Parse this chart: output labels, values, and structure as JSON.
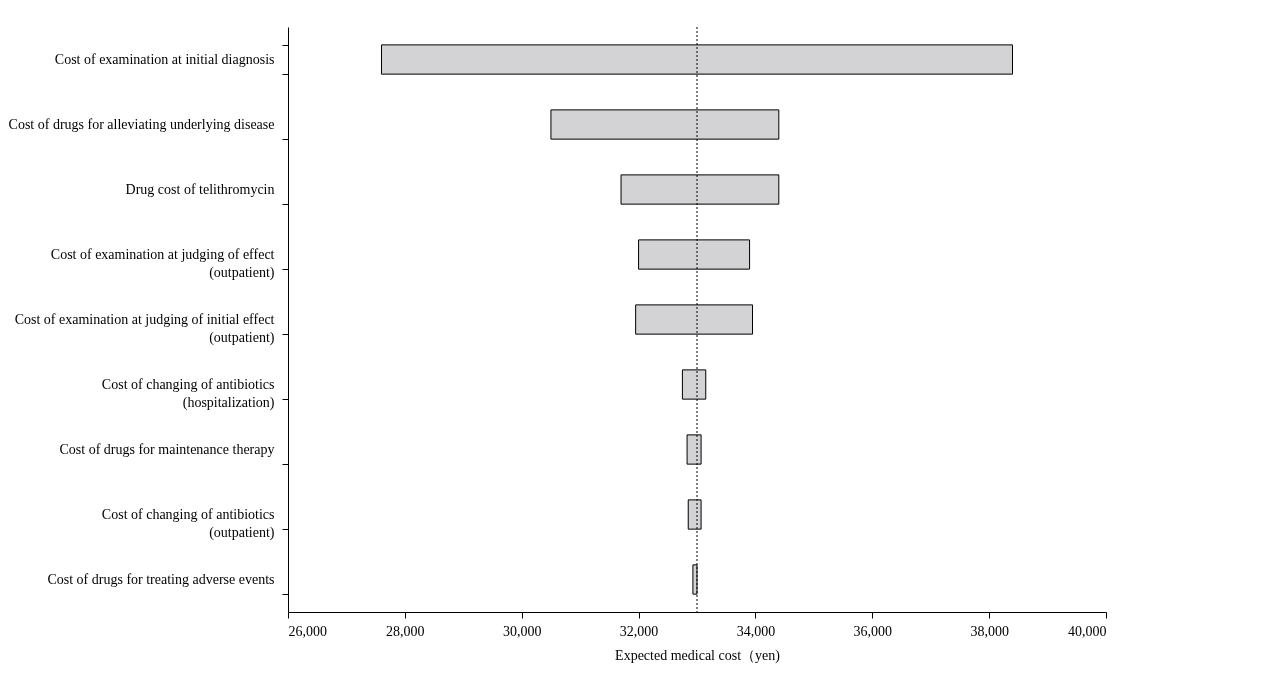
{
  "chart_data": {
    "type": "bar",
    "orientation": "horizontal",
    "xlabel": "Expected medical cost（yen)",
    "categories": [
      "Cost of examination at initial diagnosis",
      "Cost of drugs for alleviating underlying disease",
      "Drug cost of telithromycin",
      "Cost of examination at judging of effect\n(outpatient)",
      "Cost of examination at judging of initial effect\n(outpatient)",
      "Cost of changing of antibiotics\n(hospitalization)",
      "Cost of drugs for maintenance therapy",
      "Cost of changing of antibiotics\n(outpatient)",
      "Cost of drugs for treating adverse events"
    ],
    "base": [
      27600,
      30500,
      31700,
      32000,
      31950,
      32750,
      32830,
      32850,
      32930
    ],
    "values": [
      10800,
      3900,
      2700,
      1900,
      2000,
      400,
      240,
      220,
      70
    ],
    "color": "#d3d3d6",
    "xlim": [
      26000,
      40000
    ],
    "xticks": [
      {
        "value": 26000,
        "label": "26,000"
      },
      {
        "value": 28000,
        "label": "28,000"
      },
      {
        "value": 30000,
        "label": "30,000"
      },
      {
        "value": 32000,
        "label": "32,000"
      },
      {
        "value": 34000,
        "label": "34,000"
      },
      {
        "value": 36000,
        "label": "36,000"
      },
      {
        "value": 38000,
        "label": "38,000"
      },
      {
        "value": 40000,
        "label": "40,000"
      }
    ],
    "ref_lines": [
      {
        "axis": "x",
        "value": 33000,
        "line_style": "dotted",
        "color": "#000000"
      }
    ]
  }
}
